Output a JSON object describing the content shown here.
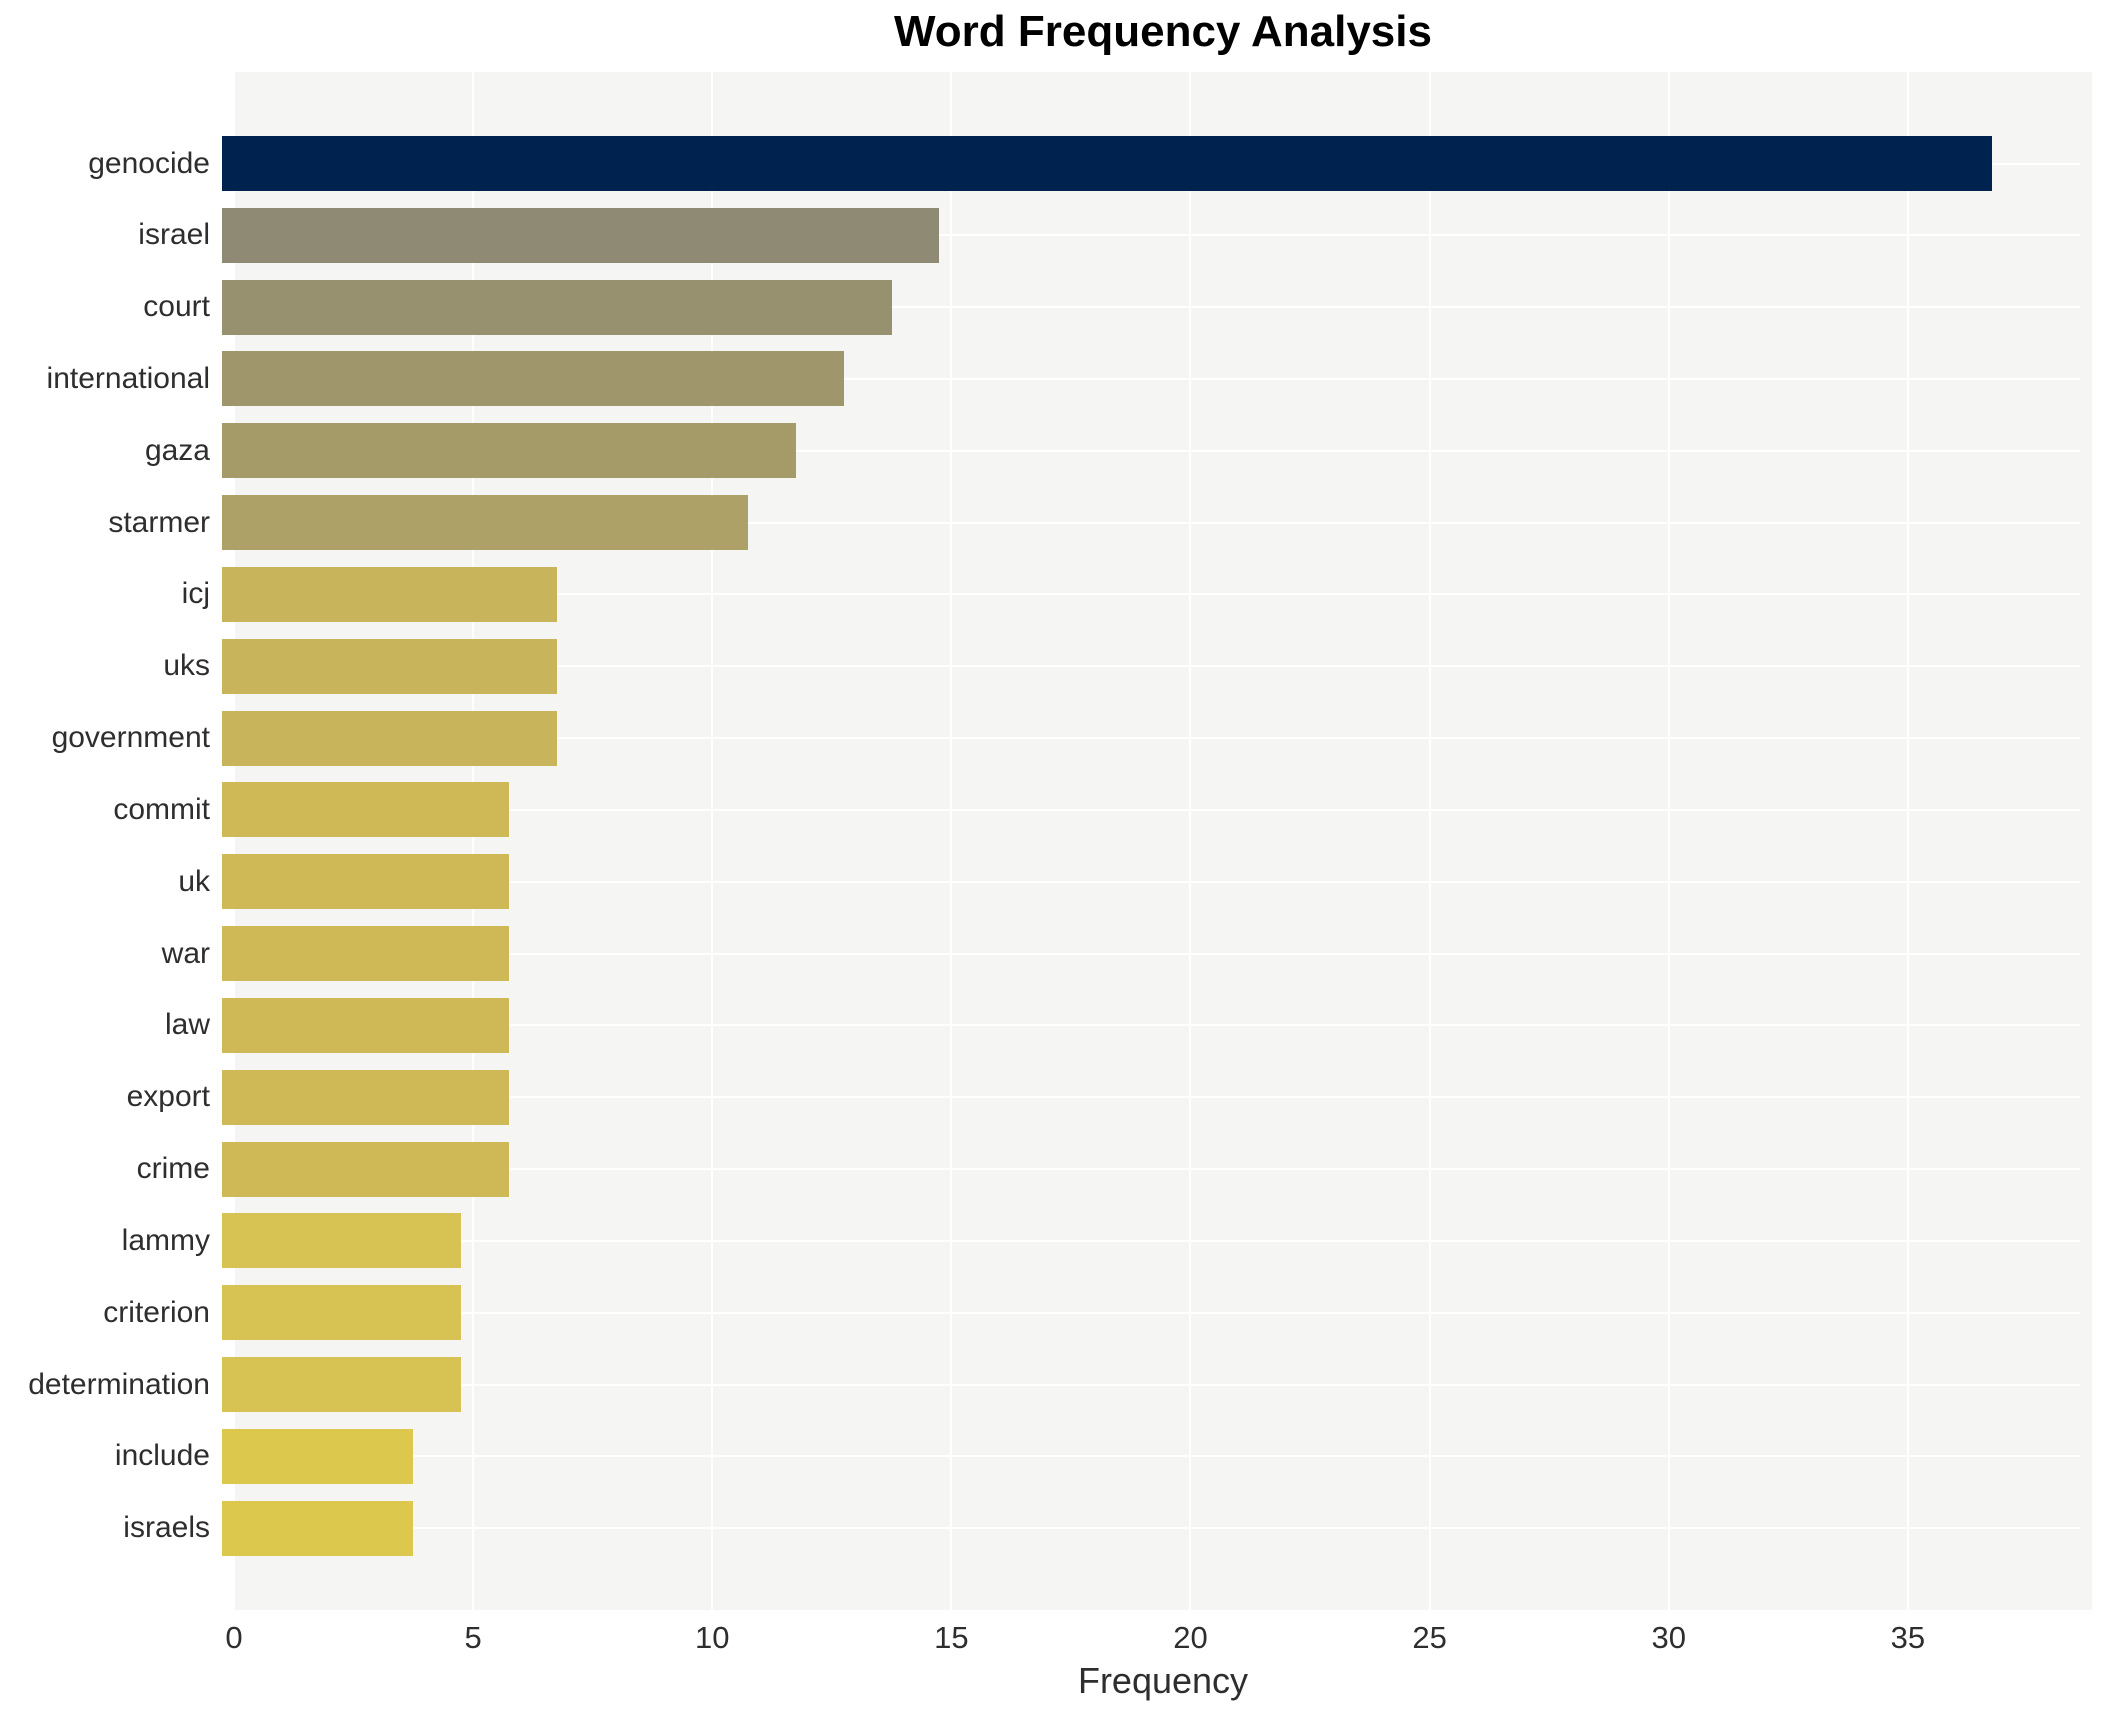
{
  "title": "Word Frequency Analysis",
  "x_axis": {
    "label": "Frequency",
    "ticks": [
      0,
      5,
      10,
      15,
      20,
      25,
      30,
      35
    ],
    "max": 38.85
  },
  "style": {
    "plot_background": "#f5f5f4",
    "grid_color": "#ffffff",
    "text_color": "#2e2e2e",
    "title_color": "#000000"
  },
  "chart_data": {
    "type": "bar",
    "orientation": "horizontal",
    "title": "Word Frequency Analysis",
    "xlabel": "Frequency",
    "ylabel": "",
    "xlim": [
      0,
      38.85
    ],
    "grid": true,
    "legend": false,
    "categories": [
      "genocide",
      "israel",
      "court",
      "international",
      "gaza",
      "starmer",
      "icj",
      "uks",
      "government",
      "commit",
      "uk",
      "war",
      "law",
      "export",
      "crime",
      "lammy",
      "criterion",
      "determination",
      "include",
      "israels"
    ],
    "values": [
      37,
      15,
      14,
      13,
      12,
      11,
      7,
      7,
      7,
      6,
      6,
      6,
      6,
      6,
      6,
      5,
      5,
      5,
      4,
      4
    ],
    "bar_colors": [
      "#00224e",
      "#8f8a73",
      "#98916f",
      "#9f966c",
      "#a59b69",
      "#ada167",
      "#c8b45b",
      "#c8b45b",
      "#c8b45b",
      "#cfb957",
      "#cfb957",
      "#cfb957",
      "#cfb957",
      "#cfb957",
      "#cfb957",
      "#d7c254",
      "#d7c254",
      "#d7c254",
      "#ddc84e",
      "#ddc84e"
    ]
  }
}
